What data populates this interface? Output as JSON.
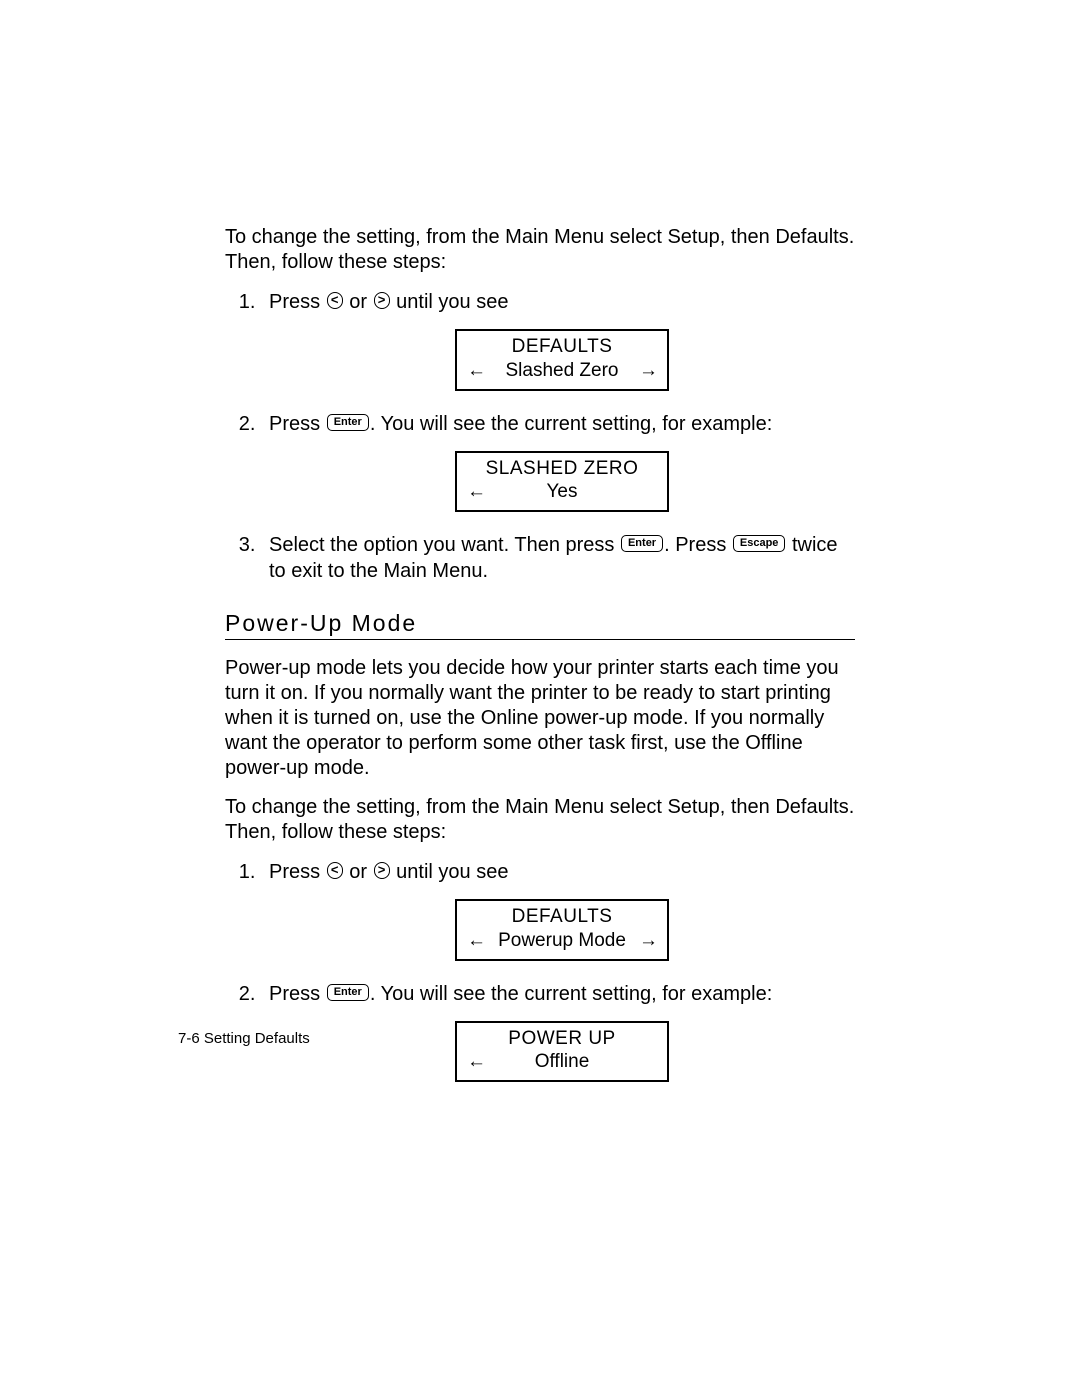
{
  "intro": "To change the setting, from the Main Menu select Setup, then Defaults.  Then, follow these steps:",
  "keys": {
    "left": "<",
    "right": ">",
    "enter": "Enter",
    "escape": "Escape",
    "arrow_left_glyph": "←",
    "arrow_right_glyph": "→"
  },
  "steps_a": {
    "s1_pre": "Press ",
    "s1_mid": " or ",
    "s1_post": " until you see",
    "box1_top": "DEFAULTS",
    "box1_bot": "Slashed Zero",
    "s2_pre": "Press ",
    "s2_post": ".  You will see the current setting, for example:",
    "box2_top": "SLASHED ZERO",
    "box2_bot": "Yes",
    "s3_pre": "Select the option you want.  Then press ",
    "s3_mid": ".  Press ",
    "s3_post": " twice to exit to the Main Menu."
  },
  "heading": "Power-Up Mode",
  "powerup_intro": "Power-up mode lets you decide how your printer starts each time you turn it on.  If you normally want the printer to be ready to start printing when it is turned on, use the Online power-up mode.  If you normally want the operator to perform some other task first, use the Offline power-up mode.",
  "intro_repeat": "To change the setting, from the Main Menu select Setup, then Defaults.  Then, follow these steps:",
  "steps_b": {
    "s1_pre": "Press ",
    "s1_mid": " or ",
    "s1_post": " until you see",
    "box1_top": "DEFAULTS",
    "box1_bot": "Powerup Mode",
    "s2_pre": "Press ",
    "s2_post": ".  You will see the current setting, for example:",
    "box2_top": "POWER UP",
    "box2_bot": "Offline"
  },
  "footer_page": "7-6",
  "footer_title": " Setting Defaults"
}
